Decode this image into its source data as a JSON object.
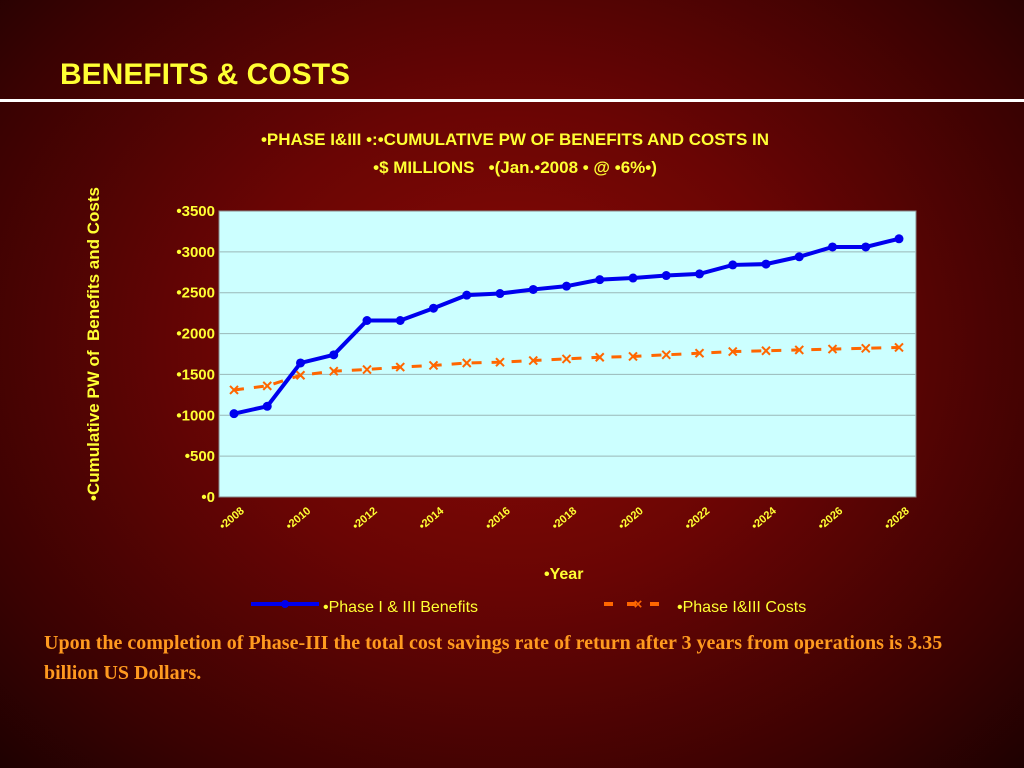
{
  "slide": {
    "title": "BENEFITS & COSTS",
    "caption": "Upon the completion of Phase-III the total cost savings rate of return after 3 years from operations is 3.35 billion US Dollars."
  },
  "colors": {
    "title": "#ffff33",
    "caption": "#ff9a1f",
    "plot_bg": "#ccffff",
    "benefits": "#0000ee",
    "costs": "#ff6600"
  },
  "chart_data": {
    "type": "line",
    "title_line1": "•PHASE I&III •:•CUMULATIVE PW OF BENEFITS AND COSTS IN",
    "title_line2": "•$ MILLIONS   •(Jan.•2008 • @ •6%•)",
    "xlabel": "•Year",
    "ylabel": "•Cumulative PW of  Benefits and Costs",
    "ylim": [
      0,
      3500
    ],
    "yticks": [
      "•0",
      "•500",
      "•1000",
      "•1500",
      "•2000",
      "•2500",
      "•3000",
      "•3500"
    ],
    "xtick_labels": [
      "•2008",
      "•2010",
      "•2012",
      "•2014",
      "•2016",
      "•2018",
      "•2020",
      "•2022",
      "•2024",
      "•2026",
      "•2028"
    ],
    "x": [
      2008,
      2009,
      2010,
      2011,
      2012,
      2013,
      2014,
      2015,
      2016,
      2017,
      2018,
      2019,
      2020,
      2021,
      2022,
      2023,
      2024,
      2025,
      2026,
      2027,
      2028
    ],
    "grid": true,
    "legend_position": "bottom",
    "series": [
      {
        "name": "•Phase I & III Benefits",
        "style": "solid",
        "values": [
          1020,
          1110,
          1640,
          1740,
          2160,
          2160,
          2310,
          2470,
          2490,
          2540,
          2580,
          2660,
          2680,
          2710,
          2730,
          2840,
          2850,
          2940,
          3060,
          3060,
          3160
        ]
      },
      {
        "name": "•Phase I&III Costs",
        "style": "dashed",
        "values": [
          1310,
          1360,
          1490,
          1540,
          1560,
          1590,
          1610,
          1640,
          1650,
          1670,
          1690,
          1710,
          1720,
          1740,
          1760,
          1780,
          1790,
          1800,
          1810,
          1820,
          1830
        ]
      }
    ]
  }
}
